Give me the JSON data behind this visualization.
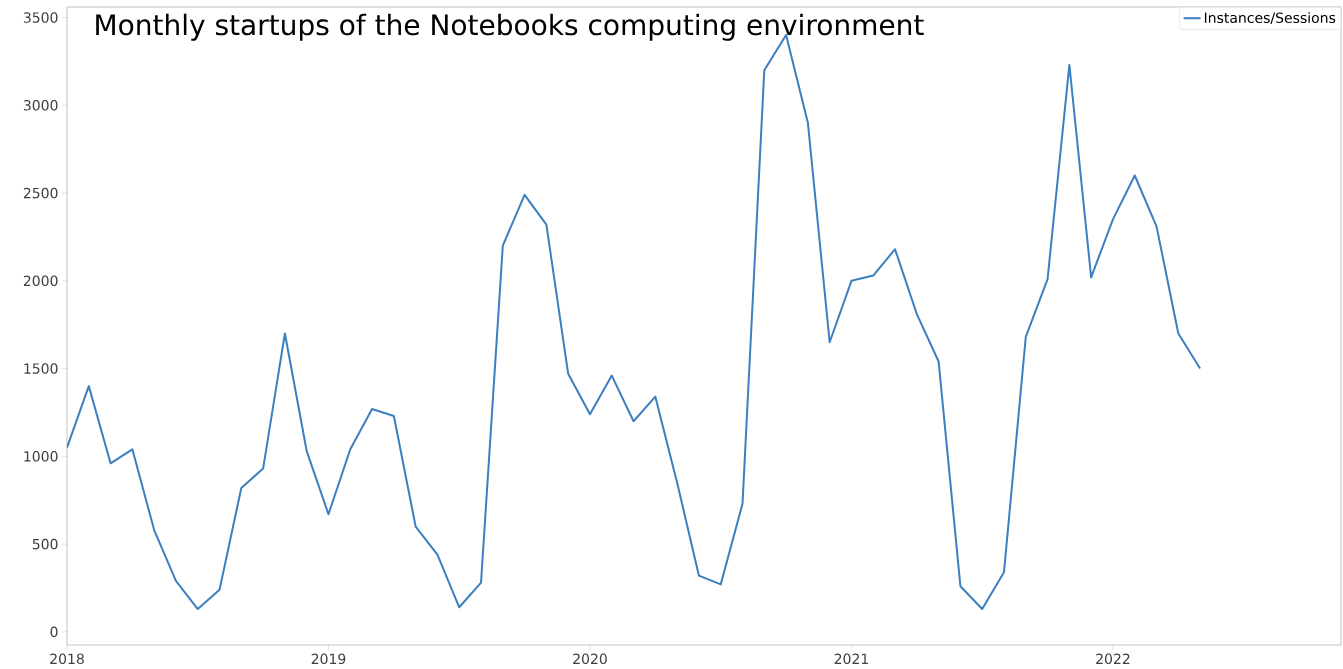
{
  "chart_data": {
    "type": "line",
    "title": "Monthly startups of the Notebooks computing environment",
    "x": [
      "2018-01",
      "2018-02",
      "2018-03",
      "2018-04",
      "2018-05",
      "2018-06",
      "2018-07",
      "2018-08",
      "2018-09",
      "2018-10",
      "2018-11",
      "2018-12",
      "2019-01",
      "2019-02",
      "2019-03",
      "2019-04",
      "2019-05",
      "2019-06",
      "2019-07",
      "2019-08",
      "2019-09",
      "2019-10",
      "2019-11",
      "2019-12",
      "2020-01",
      "2020-02",
      "2020-03",
      "2020-04",
      "2020-05",
      "2020-06",
      "2020-07",
      "2020-08",
      "2020-09",
      "2020-10",
      "2020-11",
      "2020-12",
      "2021-01",
      "2021-02",
      "2021-03",
      "2021-04",
      "2021-05",
      "2021-06",
      "2021-07",
      "2021-08",
      "2021-09",
      "2021-10",
      "2021-11",
      "2021-12",
      "2022-01",
      "2022-02",
      "2022-03",
      "2022-04",
      "2022-05"
    ],
    "series": [
      {
        "name": "Instances/Sessions",
        "color": "#3b7fbf",
        "values": [
          1050,
          1400,
          960,
          1040,
          580,
          290,
          130,
          240,
          820,
          930,
          1700,
          1030,
          670,
          1040,
          1270,
          1230,
          600,
          440,
          140,
          280,
          2200,
          2490,
          2320,
          1470,
          1240,
          1460,
          1200,
          1340,
          850,
          320,
          270,
          730,
          3200,
          3400,
          2900,
          1650,
          2000,
          2030,
          2180,
          1810,
          1540,
          260,
          130,
          340,
          1680,
          2010,
          3230,
          2020,
          2350,
          2600,
          2310,
          1700,
          1500
        ]
      }
    ],
    "xlim": [
      "2018-01",
      "2022-11-15"
    ],
    "xticks": [
      {
        "value": "2018-01",
        "label": "2018"
      },
      {
        "value": "2019-01",
        "label": "2019"
      },
      {
        "value": "2020-01",
        "label": "2020"
      },
      {
        "value": "2021-01",
        "label": "2021"
      },
      {
        "value": "2022-01",
        "label": "2022"
      }
    ],
    "ylim": [
      -75,
      3560
    ],
    "yticks": [
      0,
      500,
      1000,
      1500,
      2000,
      2500,
      3000,
      3500
    ],
    "legend": "top right",
    "grid": false,
    "marker": "none",
    "line_style": "solid"
  }
}
